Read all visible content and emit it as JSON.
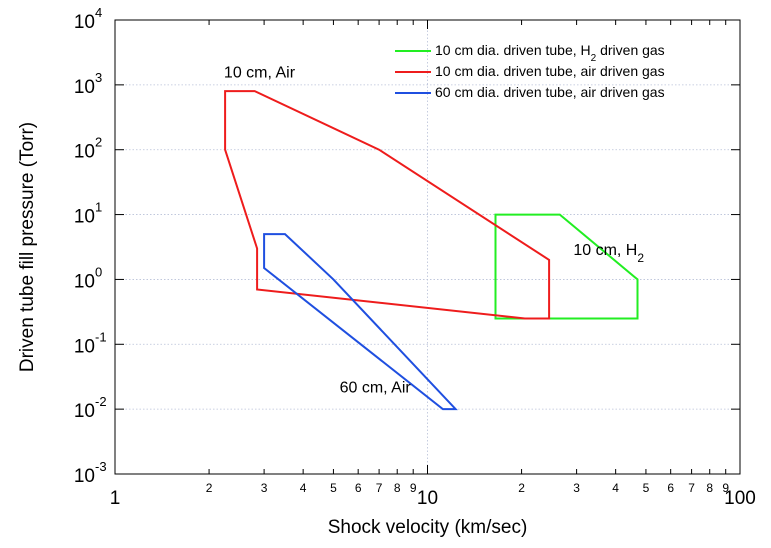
{
  "chart_data": {
    "type": "line",
    "xlabel": "Shock velocity (km/sec)",
    "ylabel": "Driven tube fill pressure (Torr)",
    "xscale": "log",
    "yscale": "log",
    "xlim": [
      1,
      100
    ],
    "ylim": [
      0.001,
      10000
    ],
    "grid": "major dotted",
    "x_major_tick_labels": [
      "1",
      "10",
      "100"
    ],
    "x_minor_tick_labels": [
      "2",
      "3",
      "4",
      "5",
      "6",
      "7",
      "8",
      "9",
      "2",
      "3",
      "4",
      "5",
      "6",
      "7",
      "8",
      "9"
    ],
    "x_minor_tick_values": [
      2,
      3,
      4,
      5,
      6,
      7,
      8,
      9,
      20,
      30,
      40,
      50,
      60,
      70,
      80,
      90
    ],
    "y_tick_values": [
      0.001,
      0.01,
      0.1,
      1,
      10,
      100,
      1000,
      10000
    ],
    "y_tick_labels": [
      {
        "base": "10",
        "exp": "-3"
      },
      {
        "base": "10",
        "exp": "-2"
      },
      {
        "base": "10",
        "exp": "-1"
      },
      {
        "base": "10",
        "exp": "0"
      },
      {
        "base": "10",
        "exp": "1"
      },
      {
        "base": "10",
        "exp": "2"
      },
      {
        "base": "10",
        "exp": "3"
      },
      {
        "base": "10",
        "exp": "4"
      }
    ],
    "legend_position": "top-right",
    "series": [
      {
        "name": "10 cm dia. driven tube, H2 driven gas",
        "legend_parts": [
          "10 cm dia. driven tube, H",
          "2",
          " driven gas"
        ],
        "color": "#22ee22",
        "closed": true,
        "points": [
          [
            16.5,
            10
          ],
          [
            26.5,
            10
          ],
          [
            47,
            1.0
          ],
          [
            47,
            0.25
          ],
          [
            16.5,
            0.25
          ]
        ]
      },
      {
        "name": "10 cm dia. driven tube, air driven gas",
        "legend_parts": [
          "10 cm dia. driven tube, air driven gas"
        ],
        "color": "#ee1c1c",
        "closed": true,
        "points": [
          [
            2.25,
            800
          ],
          [
            2.8,
            800
          ],
          [
            7.0,
            100
          ],
          [
            24.5,
            2.0
          ],
          [
            24.5,
            0.25
          ],
          [
            20.5,
            0.25
          ],
          [
            2.85,
            0.7
          ],
          [
            2.85,
            3.0
          ],
          [
            2.25,
            100
          ]
        ]
      },
      {
        "name": "60 cm dia. driven tube, air driven gas",
        "legend_parts": [
          "60 cm dia. driven tube, air driven gas"
        ],
        "color": "#1f4fe0",
        "closed": true,
        "points": [
          [
            3.0,
            5.0
          ],
          [
            3.5,
            5.0
          ],
          [
            5.0,
            1.0
          ],
          [
            12.3,
            0.01
          ],
          [
            11.2,
            0.01
          ],
          [
            3.0,
            1.5
          ]
        ]
      }
    ],
    "annotations": [
      {
        "parts": [
          "10 cm, Air"
        ],
        "x": 2.9,
        "y": 1300
      },
      {
        "parts": [
          "60 cm, Air"
        ],
        "x": 6.8,
        "y": 0.018
      },
      {
        "parts": [
          "10 cm, H",
          "2"
        ],
        "x": 38,
        "y": 2.4
      }
    ]
  }
}
